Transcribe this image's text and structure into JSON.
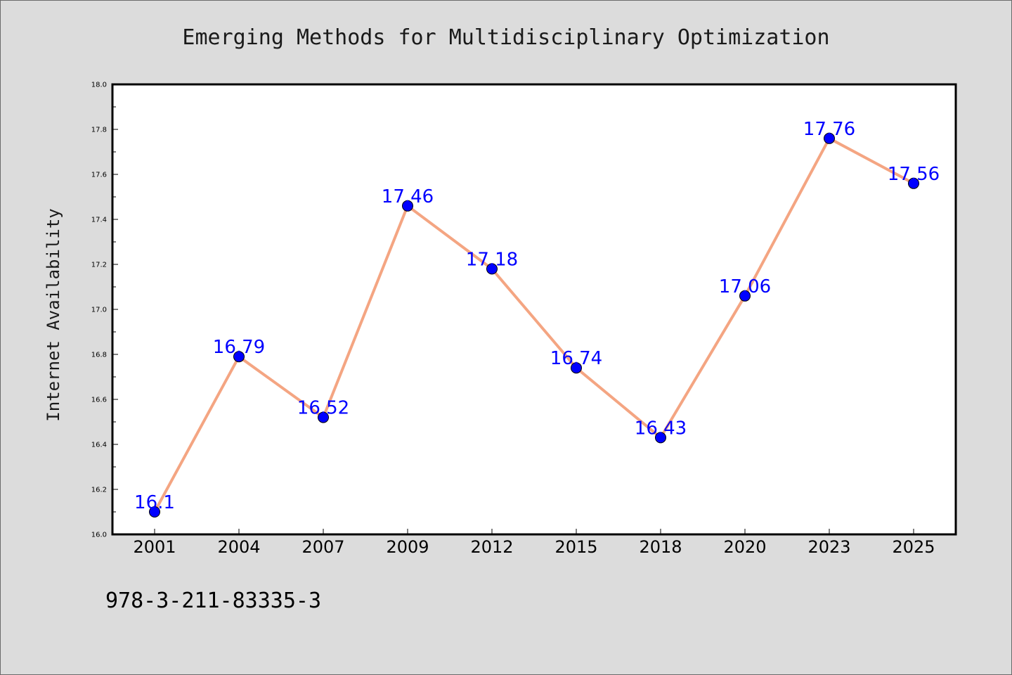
{
  "footer": {
    "isbn": "978-3-211-83335-3"
  },
  "chart_data": {
    "type": "line",
    "title": "Emerging Methods for Multidisciplinary Optimization",
    "xlabel": "",
    "ylabel": "Internet Availability",
    "categories": [
      "2001",
      "2004",
      "2007",
      "2009",
      "2012",
      "2015",
      "2018",
      "2020",
      "2023",
      "2025"
    ],
    "values": [
      16.1,
      16.79,
      16.52,
      17.46,
      17.18,
      16.74,
      16.43,
      17.06,
      17.76,
      17.56
    ],
    "data_labels": [
      "16.1",
      "16.79",
      "16.52",
      "17.46",
      "17.18",
      "16.74",
      "16.43",
      "17.06",
      "17.76",
      "17.56"
    ],
    "ylim": [
      16.0,
      18.0
    ],
    "yticks": [
      "16.0",
      "16.2",
      "16.4",
      "16.6",
      "16.8",
      "17.0",
      "17.2",
      "17.4",
      "17.6",
      "17.8",
      "18.0"
    ],
    "grid": false,
    "legend": "none",
    "colors": {
      "line": "#f4a582",
      "marker": "#0000ff",
      "label": "#0000ff",
      "background": "#dcdcdc",
      "plot_area": "#ffffff"
    }
  }
}
